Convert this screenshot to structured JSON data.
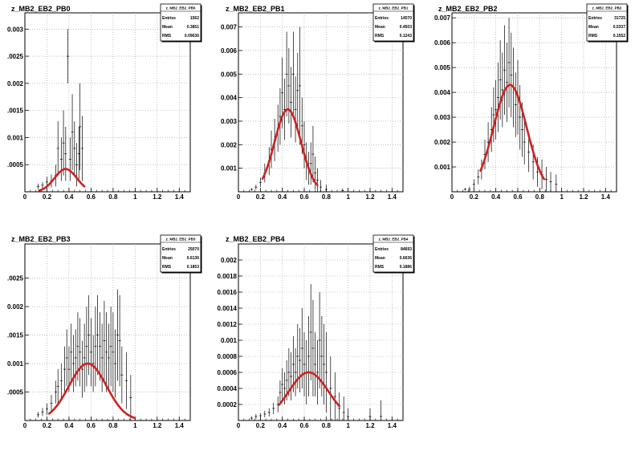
{
  "chart_data": [
    {
      "type": "scatter",
      "title": "z_MB2_EB2_PB0",
      "xlim": [
        0,
        1.5
      ],
      "ylim": [
        0,
        0.0033
      ],
      "xticks": [
        "0",
        "0.2",
        "0.4",
        "0.6",
        "0.8",
        "1",
        "1.2",
        "1.4"
      ],
      "yticks": [
        {
          "v": 0.0005,
          "t": ".0005"
        },
        {
          "v": 0.001,
          "t": "0.001"
        },
        {
          "v": 0.0015,
          "t": ".0015"
        },
        {
          "v": 0.002,
          "t": "0.002"
        },
        {
          "v": 0.0025,
          "t": ".0025"
        },
        {
          "v": 0.003,
          "t": "0.003"
        }
      ],
      "grid": true,
      "stats": {
        "name": "z_MB2_EB2_PB0",
        "entries": "1562",
        "mean": "0.3851",
        "rms": "0.09636"
      },
      "fit": {
        "mean": 0.37,
        "sigma": 0.1,
        "amp": 0.00042,
        "xmin": 0.13,
        "xmax": 0.54
      },
      "points": [
        [
          0.12,
          0.0001,
          5e-05
        ],
        [
          0.16,
          0.00012,
          6e-05
        ],
        [
          0.2,
          0.00018,
          0.0001
        ],
        [
          0.24,
          0.0002,
          0.00012
        ],
        [
          0.28,
          0.0003,
          0.0002
        ],
        [
          0.3,
          0.0008,
          0.0005
        ],
        [
          0.33,
          0.0006,
          0.0004
        ],
        [
          0.35,
          0.0009,
          0.0006
        ],
        [
          0.37,
          0.0007,
          0.0005
        ],
        [
          0.39,
          0.0025,
          0.0005
        ],
        [
          0.41,
          0.0006,
          0.0004
        ],
        [
          0.43,
          0.0011,
          0.0007
        ],
        [
          0.45,
          0.0008,
          0.0005
        ],
        [
          0.47,
          0.0005,
          0.0004
        ],
        [
          0.49,
          0.0007,
          0.0005
        ],
        [
          0.5,
          0.0012,
          0.0008
        ],
        [
          0.52,
          0.0008,
          0.0006
        ]
      ]
    },
    {
      "type": "scatter",
      "title": "z_MB2_EB2_PB1",
      "xlim": [
        0,
        1.5
      ],
      "ylim": [
        0,
        0.0076
      ],
      "xticks": [
        "0",
        "0.2",
        "0.4",
        "0.6",
        "0.8",
        "1",
        "1.2",
        "1.4"
      ],
      "yticks": [
        {
          "v": 0.001,
          "t": "0.001"
        },
        {
          "v": 0.002,
          "t": "0.002"
        },
        {
          "v": 0.003,
          "t": "0.003"
        },
        {
          "v": 0.004,
          "t": "0.004"
        },
        {
          "v": 0.005,
          "t": "0.005"
        },
        {
          "v": 0.006,
          "t": "0.006"
        },
        {
          "v": 0.007,
          "t": "0.007"
        }
      ],
      "grid": true,
      "stats": {
        "name": "z_MB2_EB2_PB1",
        "entries": "14570",
        "mean": "0.4503",
        "rms": "0.1243"
      },
      "fit": {
        "mean": 0.45,
        "sigma": 0.12,
        "amp": 0.0035,
        "xmin": 0.22,
        "xmax": 0.72
      },
      "points": [
        [
          0.12,
          0.0001,
          5e-05
        ],
        [
          0.16,
          0.0002,
          0.0001
        ],
        [
          0.2,
          0.0004,
          0.0002
        ],
        [
          0.24,
          0.0008,
          0.0004
        ],
        [
          0.28,
          0.0013,
          0.0006
        ],
        [
          0.3,
          0.0018,
          0.0008
        ],
        [
          0.33,
          0.0022,
          0.0009
        ],
        [
          0.36,
          0.0027,
          0.001
        ],
        [
          0.38,
          0.0032,
          0.0012
        ],
        [
          0.4,
          0.0042,
          0.0015
        ],
        [
          0.42,
          0.0035,
          0.0013
        ],
        [
          0.44,
          0.005,
          0.0018
        ],
        [
          0.46,
          0.0045,
          0.0016
        ],
        [
          0.48,
          0.0038,
          0.0015
        ],
        [
          0.5,
          0.005,
          0.0018
        ],
        [
          0.52,
          0.0035,
          0.0014
        ],
        [
          0.54,
          0.0043,
          0.0016
        ],
        [
          0.56,
          0.0045,
          0.0025
        ],
        [
          0.58,
          0.0028,
          0.0012
        ],
        [
          0.6,
          0.002,
          0.001
        ],
        [
          0.62,
          0.0013,
          0.0008
        ],
        [
          0.64,
          0.001,
          0.0007
        ],
        [
          0.66,
          0.0012,
          0.0009
        ],
        [
          0.68,
          0.0016,
          0.0012
        ],
        [
          0.7,
          0.0008,
          0.0007
        ],
        [
          0.72,
          0.0005,
          0.0005
        ],
        [
          0.75,
          0.0002,
          0.0003
        ],
        [
          0.8,
          0.0001,
          0.0002
        ],
        [
          0.95,
          5e-05,
          0.0001
        ]
      ]
    },
    {
      "type": "scatter",
      "title": "z_MB2_EB2_PB2",
      "xlim": [
        0,
        1.5
      ],
      "ylim": [
        0,
        0.0072
      ],
      "xticks": [
        "0",
        "0.2",
        "0.4",
        "0.6",
        "0.8",
        "1",
        "1.2",
        "1.4"
      ],
      "yticks": [
        {
          "v": 0.001,
          "t": "0.001"
        },
        {
          "v": 0.002,
          "t": "0.002"
        },
        {
          "v": 0.003,
          "t": "0.003"
        },
        {
          "v": 0.004,
          "t": "0.004"
        },
        {
          "v": 0.005,
          "t": "0.005"
        },
        {
          "v": 0.006,
          "t": "0.006"
        },
        {
          "v": 0.007,
          "t": "0.007"
        }
      ],
      "grid": true,
      "stats": {
        "name": "z_MB2_EB2_PB2",
        "entries": "31725",
        "mean": "0.5337",
        "rms": "0.1552"
      },
      "fit": {
        "mean": 0.53,
        "sigma": 0.15,
        "amp": 0.0043,
        "xmin": 0.26,
        "xmax": 0.84
      },
      "points": [
        [
          0.12,
          0.0001,
          5e-05
        ],
        [
          0.16,
          0.0001,
          0.0001
        ],
        [
          0.2,
          0.0003,
          0.0002
        ],
        [
          0.24,
          0.0006,
          0.0003
        ],
        [
          0.27,
          0.0009,
          0.0004
        ],
        [
          0.3,
          0.0015,
          0.0006
        ],
        [
          0.33,
          0.002,
          0.0008
        ],
        [
          0.36,
          0.0025,
          0.0009
        ],
        [
          0.38,
          0.0031,
          0.0011
        ],
        [
          0.4,
          0.0033,
          0.0012
        ],
        [
          0.42,
          0.0038,
          0.0014
        ],
        [
          0.44,
          0.0045,
          0.0016
        ],
        [
          0.46,
          0.0041,
          0.0015
        ],
        [
          0.48,
          0.0049,
          0.0018
        ],
        [
          0.5,
          0.0044,
          0.0016
        ],
        [
          0.52,
          0.0052,
          0.0018
        ],
        [
          0.54,
          0.0047,
          0.0017
        ],
        [
          0.56,
          0.0042,
          0.0016
        ],
        [
          0.58,
          0.0035,
          0.0013
        ],
        [
          0.6,
          0.0038,
          0.0015
        ],
        [
          0.62,
          0.003,
          0.0013
        ],
        [
          0.64,
          0.0025,
          0.0011
        ],
        [
          0.66,
          0.002,
          0.0009
        ],
        [
          0.7,
          0.0016,
          0.0008
        ],
        [
          0.74,
          0.0012,
          0.0007
        ],
        [
          0.78,
          0.0008,
          0.0006
        ],
        [
          0.82,
          0.0007,
          0.0006
        ],
        [
          0.86,
          0.0005,
          0.0005
        ],
        [
          0.9,
          0.0004,
          0.0004
        ],
        [
          0.95,
          0.0003,
          0.0004
        ]
      ]
    },
    {
      "type": "scatter",
      "title": "z_MB2_EB2_PB3",
      "xlim": [
        0,
        1.5
      ],
      "ylim": [
        0,
        0.0031
      ],
      "xticks": [
        "0",
        "0.2",
        "0.4",
        "0.6",
        "0.8",
        "1",
        "1.2",
        "1.4"
      ],
      "yticks": [
        {
          "v": 0.0005,
          "t": ".0005"
        },
        {
          "v": 0.001,
          "t": "0.001"
        },
        {
          "v": 0.0015,
          "t": ".0015"
        },
        {
          "v": 0.002,
          "t": "0.002"
        },
        {
          "v": 0.0025,
          "t": ".0025"
        }
      ],
      "grid": true,
      "stats": {
        "name": "z_MB2_EB2_PB3",
        "entries": "25070",
        "mean": "0.6136",
        "rms": "0.1853"
      },
      "fit": {
        "mean": 0.57,
        "sigma": 0.17,
        "amp": 0.001,
        "xmin": 0.22,
        "xmax": 0.99
      },
      "points": [
        [
          0.12,
          0.0001,
          5e-05
        ],
        [
          0.16,
          0.00015,
          7e-05
        ],
        [
          0.2,
          0.0002,
          0.0001
        ],
        [
          0.24,
          0.0003,
          0.00015
        ],
        [
          0.28,
          0.0005,
          0.0002
        ],
        [
          0.3,
          0.0006,
          0.0003
        ],
        [
          0.33,
          0.0007,
          0.0003
        ],
        [
          0.36,
          0.0009,
          0.0004
        ],
        [
          0.38,
          0.0011,
          0.0005
        ],
        [
          0.4,
          0.0009,
          0.0004
        ],
        [
          0.42,
          0.0012,
          0.0005
        ],
        [
          0.44,
          0.001,
          0.0005
        ],
        [
          0.46,
          0.0011,
          0.0005
        ],
        [
          0.48,
          0.0013,
          0.0006
        ],
        [
          0.5,
          0.0012,
          0.0006
        ],
        [
          0.52,
          0.0009,
          0.0005
        ],
        [
          0.54,
          0.0011,
          0.0006
        ],
        [
          0.56,
          0.0013,
          0.0007
        ],
        [
          0.58,
          0.0015,
          0.0007
        ],
        [
          0.6,
          0.0012,
          0.0006
        ],
        [
          0.62,
          0.001,
          0.0005
        ],
        [
          0.64,
          0.0013,
          0.0007
        ],
        [
          0.66,
          0.0015,
          0.0007
        ],
        [
          0.68,
          0.0013,
          0.0006
        ],
        [
          0.7,
          0.0011,
          0.0006
        ],
        [
          0.72,
          0.0014,
          0.0007
        ],
        [
          0.74,
          0.0012,
          0.0007
        ],
        [
          0.76,
          0.0011,
          0.0006
        ],
        [
          0.78,
          0.0013,
          0.0007
        ],
        [
          0.8,
          0.0012,
          0.0007
        ],
        [
          0.82,
          0.001,
          0.0006
        ],
        [
          0.84,
          0.0015,
          0.0008
        ],
        [
          0.86,
          0.0014,
          0.0008
        ],
        [
          0.88,
          0.0008,
          0.0005
        ],
        [
          0.92,
          0.0007,
          0.0005
        ],
        [
          0.96,
          0.0004,
          0.0004
        ]
      ]
    },
    {
      "type": "scatter",
      "title": "z_MB2_EB2_PB4",
      "xlim": [
        0,
        1.5
      ],
      "ylim": [
        0,
        0.0022
      ],
      "xticks": [
        "0",
        "0.2",
        "0.4",
        "0.6",
        "0.8",
        "1",
        "1.2",
        "1.4"
      ],
      "yticks": [
        {
          "v": 0.0002,
          "t": "0.0002"
        },
        {
          "v": 0.0004,
          "t": "0.0004"
        },
        {
          "v": 0.0006,
          "t": "0.0006"
        },
        {
          "v": 0.0008,
          "t": "0.0008"
        },
        {
          "v": 0.001,
          "t": "0.001"
        },
        {
          "v": 0.0012,
          "t": "0.0012"
        },
        {
          "v": 0.0014,
          "t": "0.0014"
        },
        {
          "v": 0.0016,
          "t": "0.0016"
        },
        {
          "v": 0.0018,
          "t": "0.0018"
        },
        {
          "v": 0.002,
          "t": "0.002"
        }
      ],
      "grid": true,
      "stats": {
        "name": "z_MB2_EB2_PB4",
        "entries": "84693",
        "mean": "0.6636",
        "rms": "0.1886"
      },
      "fit": {
        "mean": 0.64,
        "sigma": 0.18,
        "amp": 0.0006,
        "xmin": 0.37,
        "xmax": 0.92
      },
      "points": [
        [
          0.12,
          3e-05,
          2e-05
        ],
        [
          0.16,
          5e-05,
          3e-05
        ],
        [
          0.2,
          6e-05,
          3e-05
        ],
        [
          0.24,
          8e-05,
          4e-05
        ],
        [
          0.28,
          0.0001,
          5e-05
        ],
        [
          0.32,
          0.00015,
          7e-05
        ],
        [
          0.36,
          0.0002,
          0.0001
        ],
        [
          0.38,
          0.00035,
          0.00015
        ],
        [
          0.4,
          0.00045,
          0.0002
        ],
        [
          0.42,
          0.0004,
          0.0002
        ],
        [
          0.44,
          0.0005,
          0.00025
        ],
        [
          0.46,
          0.0006,
          0.0003
        ],
        [
          0.48,
          0.00055,
          0.0003
        ],
        [
          0.5,
          0.0007,
          0.00035
        ],
        [
          0.52,
          0.0006,
          0.0003
        ],
        [
          0.54,
          0.0008,
          0.0004
        ],
        [
          0.56,
          0.00075,
          0.0004
        ],
        [
          0.58,
          0.0009,
          0.0005
        ],
        [
          0.6,
          0.0007,
          0.0004
        ],
        [
          0.62,
          0.0006,
          0.0004
        ],
        [
          0.64,
          0.0008,
          0.0005
        ],
        [
          0.66,
          0.0011,
          0.0006
        ],
        [
          0.68,
          0.0009,
          0.0006
        ],
        [
          0.7,
          0.0007,
          0.0004
        ],
        [
          0.72,
          0.0006,
          0.0004
        ],
        [
          0.74,
          0.001,
          0.0006
        ],
        [
          0.76,
          0.0008,
          0.0005
        ],
        [
          0.78,
          0.0007,
          0.0005
        ],
        [
          0.8,
          0.0006,
          0.0005
        ],
        [
          0.84,
          0.0004,
          0.0004
        ],
        [
          0.88,
          0.0003,
          0.0003
        ],
        [
          0.92,
          0.00015,
          0.0002
        ],
        [
          0.96,
          0.0001,
          0.0002
        ],
        [
          1.0,
          5e-05,
          0.0001
        ],
        [
          1.2,
          5e-05,
          0.0001
        ],
        [
          1.3,
          5e-05,
          0.0002
        ]
      ]
    }
  ],
  "labels": {
    "entries": "Entries",
    "mean": "Mean",
    "rms": "RMS"
  },
  "colors": {
    "fit": "#cc2222",
    "axis": "#000000",
    "grid": "#999999",
    "points": "#000000"
  }
}
